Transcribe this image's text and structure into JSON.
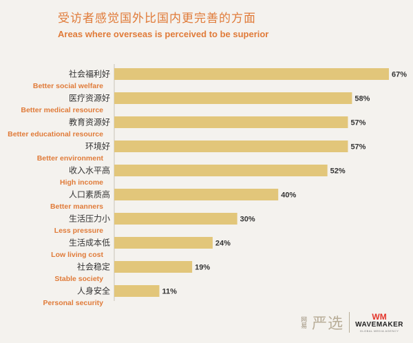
{
  "header": {
    "title_cn": "受访者感觉国外比国内更完善的方面",
    "title_en": "Areas where overseas is perceived to be superior"
  },
  "footer": {
    "wy_small": "网易",
    "yx_logo": "严选",
    "wm_mark": "WM",
    "wm_name": "WAVEMAKER",
    "wm_sub": "GLOBAL MEDIA AGENCY"
  },
  "chart_data": {
    "type": "bar",
    "orientation": "horizontal",
    "title": "受访者感觉国外比国内更完善的方面",
    "subtitle": "Areas where overseas is perceived to be superior",
    "categories": [
      {
        "cn": "社会福利好",
        "en": "Better social welfare"
      },
      {
        "cn": "医疗资源好",
        "en": "Better medical resource"
      },
      {
        "cn": "教育资源好",
        "en": "Better educational resource"
      },
      {
        "cn": "环境好",
        "en": "Better environment"
      },
      {
        "cn": "收入水平高",
        "en": "High income"
      },
      {
        "cn": "人口素质高",
        "en": "Better manners"
      },
      {
        "cn": "生活压力小",
        "en": "Less pressure"
      },
      {
        "cn": "生活成本低",
        "en": "Low living cost"
      },
      {
        "cn": "社会稳定",
        "en": "Stable society"
      },
      {
        "cn": "人身安全",
        "en": "Personal security"
      }
    ],
    "values": [
      67,
      58,
      57,
      57,
      52,
      40,
      30,
      24,
      19,
      11
    ],
    "value_suffix": "%",
    "xlim": [
      0,
      67
    ],
    "bar_color": "#e2c67a",
    "label_color_en": "#e07b39",
    "grid": false,
    "legend": "none"
  }
}
